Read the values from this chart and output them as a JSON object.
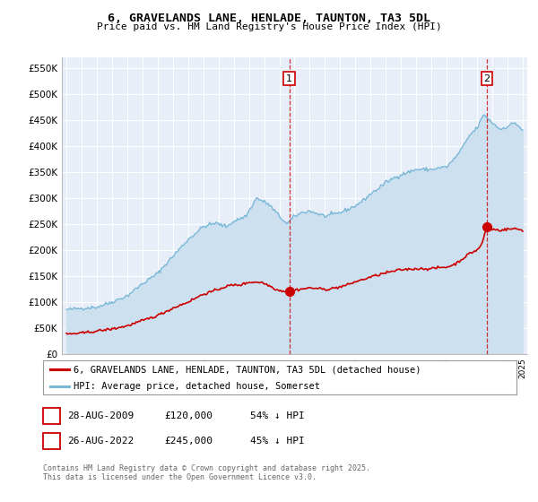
{
  "title": "6, GRAVELANDS LANE, HENLADE, TAUNTON, TA3 5DL",
  "subtitle": "Price paid vs. HM Land Registry's House Price Index (HPI)",
  "ylim": [
    0,
    570000
  ],
  "yticks": [
    0,
    50000,
    100000,
    150000,
    200000,
    250000,
    300000,
    350000,
    400000,
    450000,
    500000,
    550000
  ],
  "ytick_labels": [
    "£0",
    "£50K",
    "£100K",
    "£150K",
    "£200K",
    "£250K",
    "£300K",
    "£350K",
    "£400K",
    "£450K",
    "£500K",
    "£550K"
  ],
  "hpi_color": "#7ab8d8",
  "hpi_fill_color": "#cce0ef",
  "price_color": "#cc0000",
  "plot_bg_color": "#e8eef8",
  "grid_color": "#ffffff",
  "transaction1_date_num": 2009.65,
  "transaction1_price": 120000,
  "transaction2_date_num": 2022.65,
  "transaction2_price": 245000,
  "legend_label_price": "6, GRAVELANDS LANE, HENLADE, TAUNTON, TA3 5DL (detached house)",
  "legend_label_hpi": "HPI: Average price, detached house, Somerset",
  "footnote": "Contains HM Land Registry data © Crown copyright and database right 2025.\nThis data is licensed under the Open Government Licence v3.0.",
  "xstart": 1995,
  "xend": 2025
}
